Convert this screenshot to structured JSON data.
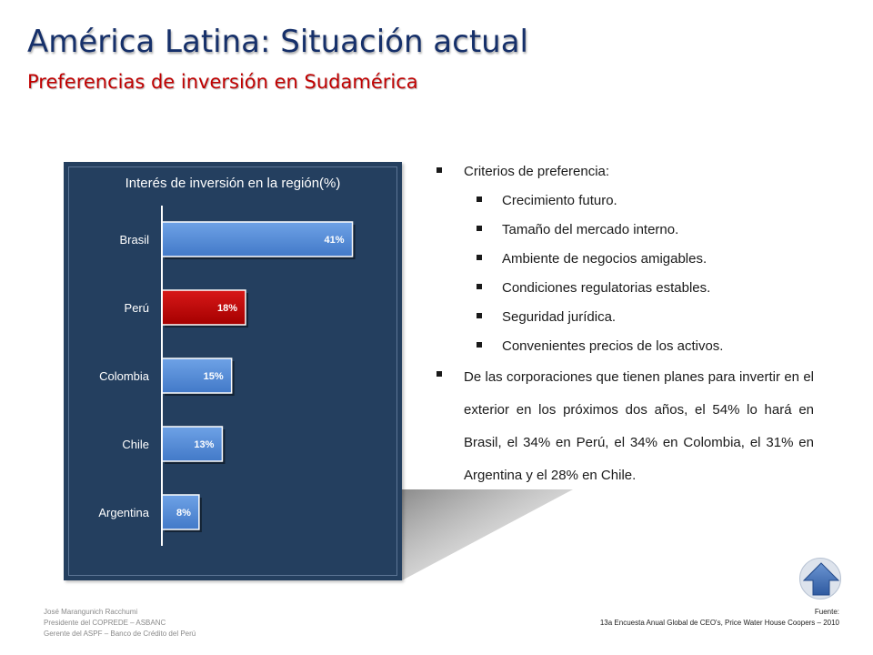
{
  "header": {
    "title": "América Latina: Situación actual",
    "subtitle": "Preferencias de inversión en Sudamérica"
  },
  "chart_data": {
    "type": "bar",
    "orientation": "horizontal",
    "title": "Interés de inversión en la región(%)",
    "categories": [
      "Brasil",
      "Perú",
      "Colombia",
      "Chile",
      "Argentina"
    ],
    "values": [
      41,
      18,
      15,
      13,
      8
    ],
    "value_labels": [
      "41%",
      "18%",
      "15%",
      "13%",
      "8%"
    ],
    "highlight_category": "Perú",
    "xlim": [
      0,
      45
    ],
    "grid": false,
    "colors": {
      "bar": "#4f8ad6",
      "highlight": "#c00000",
      "panel": "#243f5f"
    }
  },
  "bullets": {
    "heading": "Criterios de preferencia:",
    "items": [
      "Crecimiento futuro.",
      "Tamaño del mercado interno.",
      "Ambiente de negocios amigables.",
      "Condiciones regulatorias estables.",
      "Seguridad jurídica.",
      "Convenientes precios de los activos."
    ],
    "paragraph": "De las corporaciones que tienen planes para invertir en el exterior en los próximos dos años, el 54% lo hará en Brasil, el 34% en Perú, el 34% en Colombia, el 31% en Argentina y el 28% en Chile."
  },
  "footer": {
    "author_lines": [
      "José Marangunich Racchumi",
      "Presidente del COPREDE – ASBANC",
      "Gerente del ASPF – Banco de Crédito del Perú"
    ],
    "source_label": "Fuente:",
    "source_text": "13a Encuesta Anual Global de CEO's, Price Water House Coopers – 2010"
  },
  "nav": {
    "icon": "up-arrow-icon"
  }
}
